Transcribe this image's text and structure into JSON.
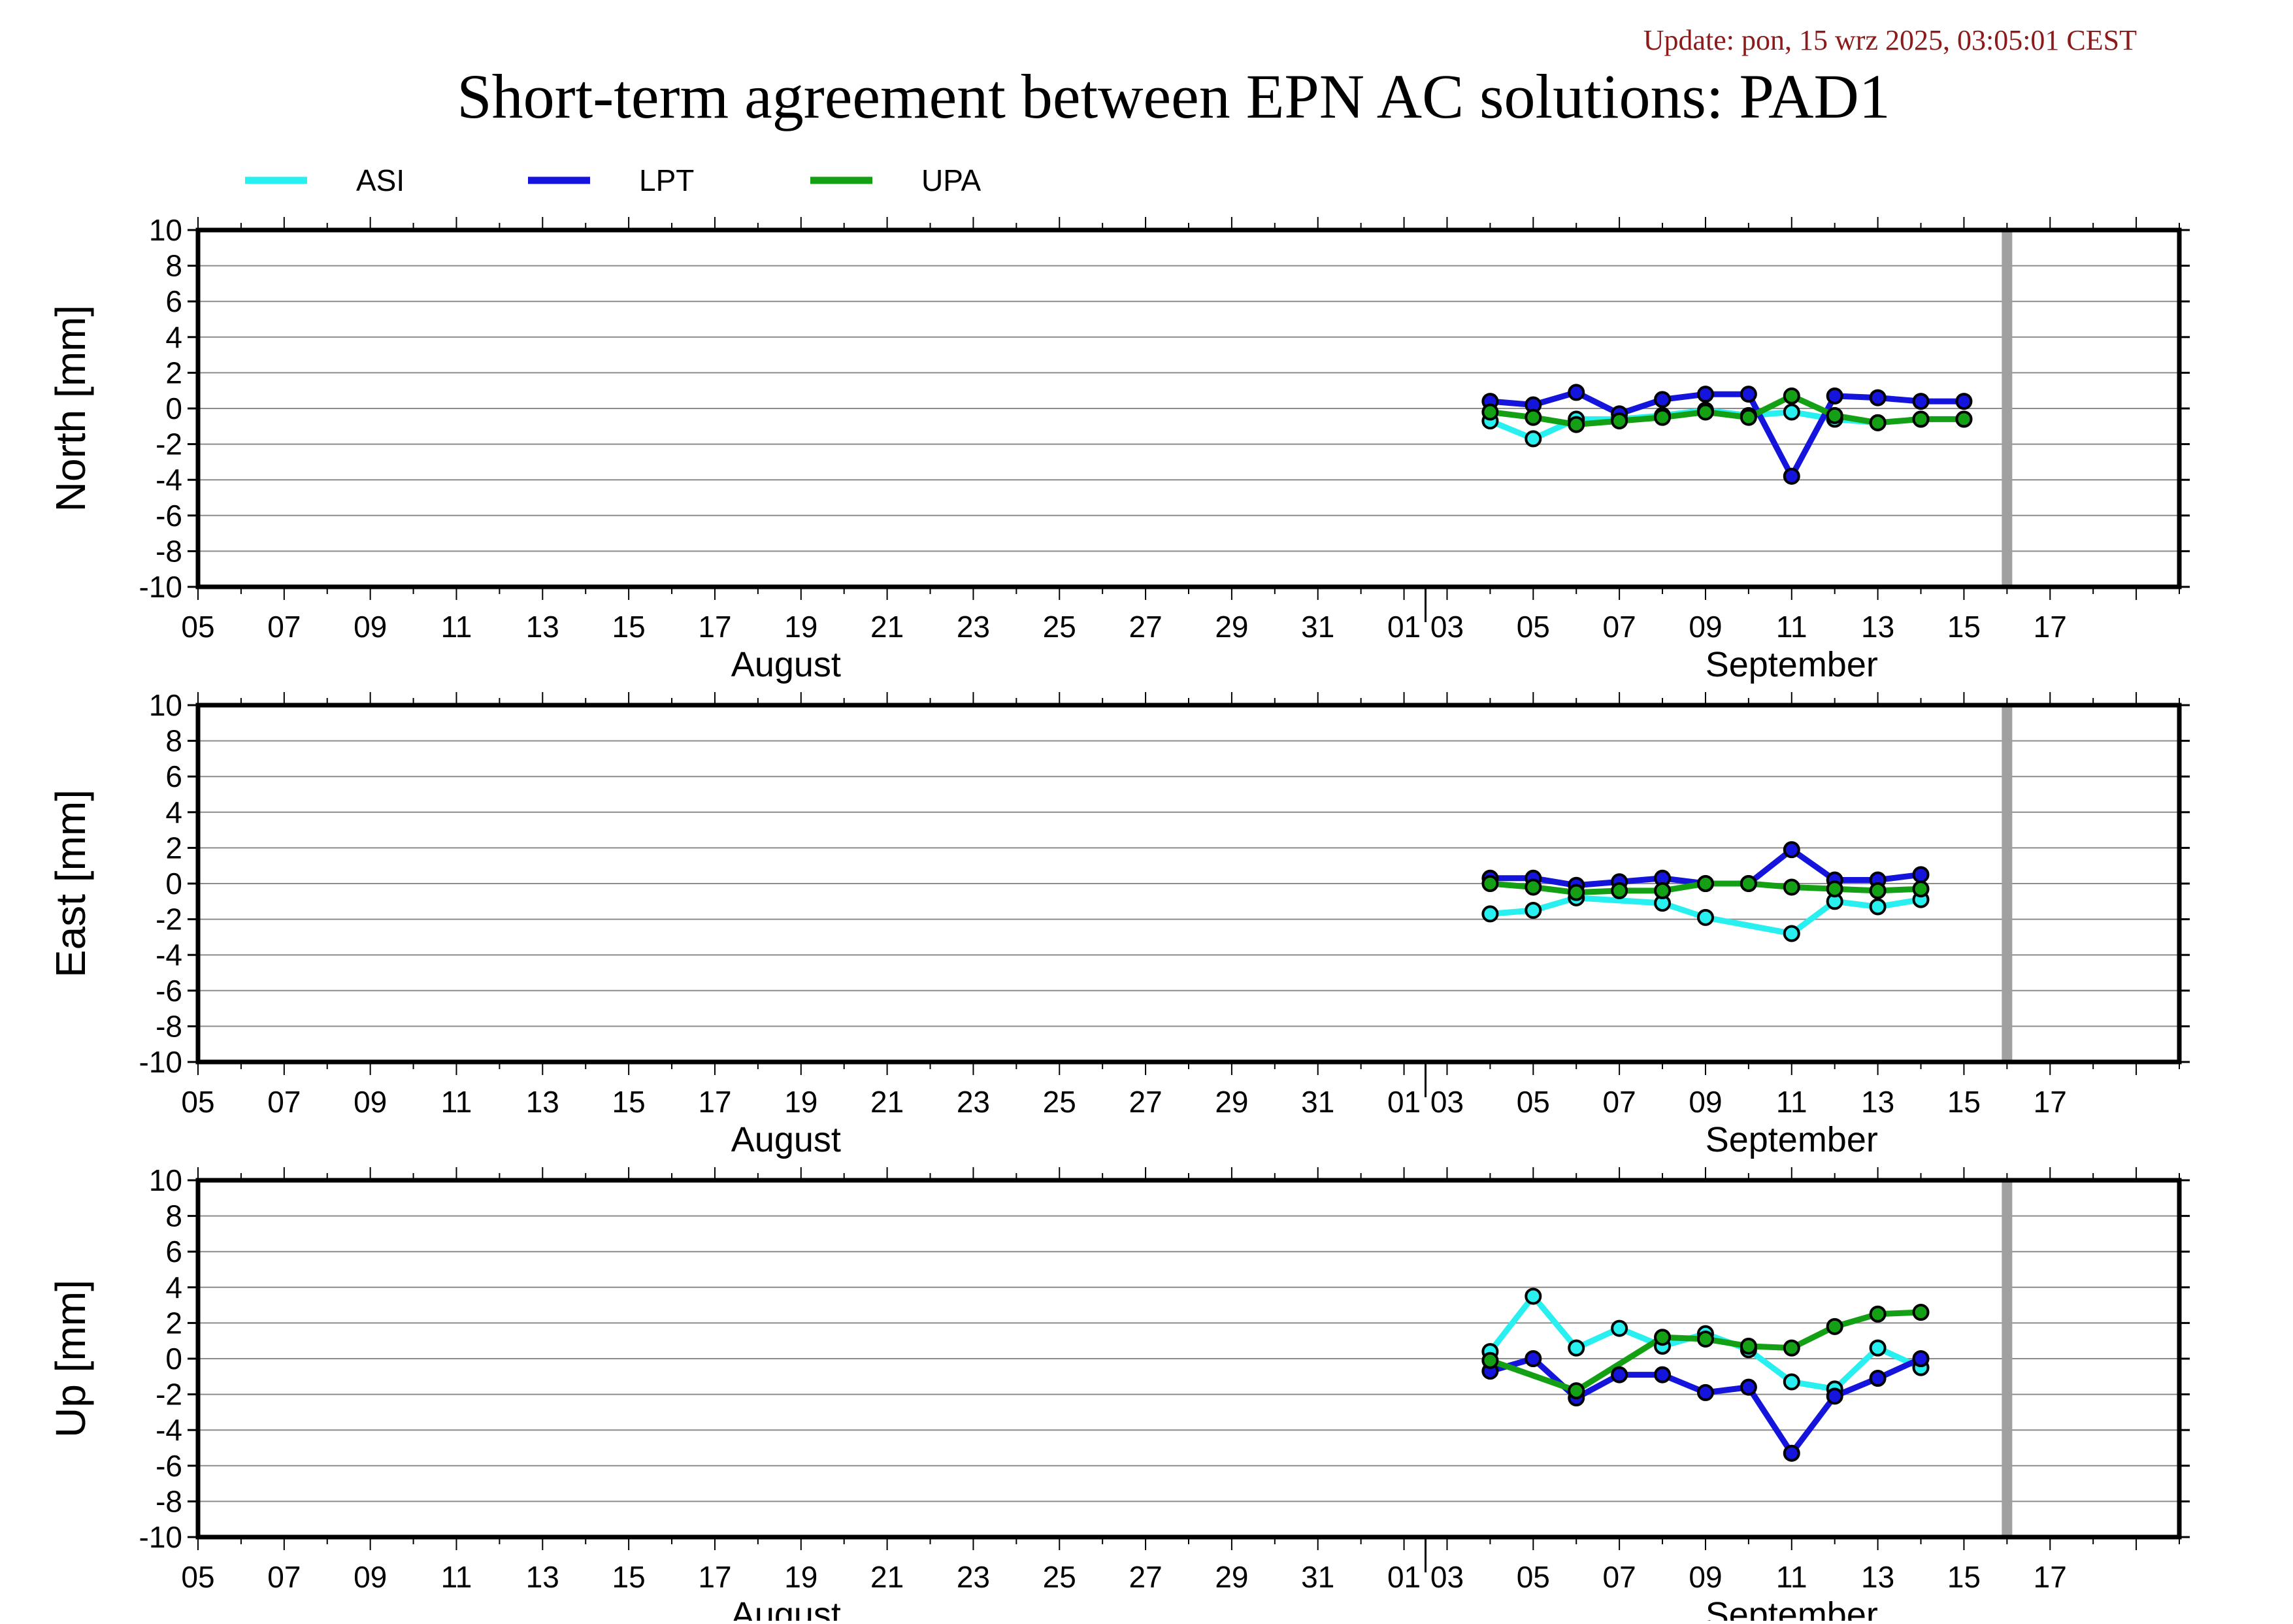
{
  "update": "Update: pon, 15 wrz 2025, 03:05:01 CEST",
  "title": "Short-term agreement between EPN AC solutions: PAD1",
  "legend": [
    {
      "name": "ASI",
      "color": "#29f0f0"
    },
    {
      "name": "LPT",
      "color": "#1414dc"
    },
    {
      "name": "UPA",
      "color": "#14a014"
    }
  ],
  "colors": {
    "frame": "#000000",
    "grid": "#8c8c8c",
    "marker_today": "#a0a0a0",
    "update": "#8b1a1a"
  },
  "x_ticks": [
    "05",
    "07",
    "09",
    "11",
    "13",
    "15",
    "17",
    "19",
    "21",
    "23",
    "25",
    "27",
    "29",
    "31",
    "01",
    "03",
    "05",
    "07",
    "09",
    "11",
    "13",
    "15",
    "17"
  ],
  "months": [
    "August",
    "September"
  ],
  "today_marker": "2025-09-14",
  "chart_data": [
    {
      "type": "line",
      "ylabel": "North [mm]",
      "ylim": [
        -10,
        10
      ],
      "yticks": [
        "10",
        "8",
        "6",
        "4",
        "2",
        "0",
        "-2",
        "-4",
        "-6",
        "-8",
        "-10"
      ],
      "xlim": [
        "2025-08-03",
        "2025-09-18"
      ],
      "series": [
        {
          "name": "ASI",
          "x": [
            "2025-09-02",
            "2025-09-03",
            "2025-09-04",
            "2025-09-05",
            "2025-09-06",
            "2025-09-07",
            "2025-09-08",
            "2025-09-09",
            "2025-09-10",
            "2025-09-11",
            "2025-09-12",
            "2025-09-13"
          ],
          "values": [
            -0.7,
            -1.7,
            -0.6,
            -0.6,
            -0.4,
            -0.1,
            -0.4,
            -0.2,
            -0.6,
            -0.8,
            -0.6,
            -0.6
          ]
        },
        {
          "name": "LPT",
          "x": [
            "2025-09-02",
            "2025-09-03",
            "2025-09-04",
            "2025-09-05",
            "2025-09-06",
            "2025-09-07",
            "2025-09-08",
            "2025-09-09",
            "2025-09-10",
            "2025-09-11",
            "2025-09-12",
            "2025-09-13"
          ],
          "values": [
            0.4,
            0.2,
            0.9,
            -0.3,
            0.5,
            0.8,
            0.8,
            -3.8,
            0.7,
            0.6,
            0.4,
            0.4
          ]
        },
        {
          "name": "UPA",
          "x": [
            "2025-09-02",
            "2025-09-03",
            "2025-09-04",
            "2025-09-05",
            "2025-09-06",
            "2025-09-07",
            "2025-09-08",
            "2025-09-09",
            "2025-09-10",
            "2025-09-11",
            "2025-09-12",
            "2025-09-13"
          ],
          "values": [
            -0.2,
            -0.5,
            -0.9,
            -0.7,
            -0.5,
            -0.2,
            -0.5,
            0.7,
            -0.4,
            -0.8,
            -0.6,
            -0.6
          ]
        }
      ]
    },
    {
      "type": "line",
      "ylabel": "East [mm]",
      "ylim": [
        -10,
        10
      ],
      "yticks": [
        "10",
        "8",
        "6",
        "4",
        "2",
        "0",
        "-2",
        "-4",
        "-6",
        "-8",
        "-10"
      ],
      "xlim": [
        "2025-08-03",
        "2025-09-18"
      ],
      "series": [
        {
          "name": "ASI",
          "x": [
            "2025-09-02",
            "2025-09-03",
            "2025-09-04",
            "2025-09-06",
            "2025-09-07",
            "2025-09-09",
            "2025-09-10",
            "2025-09-11",
            "2025-09-12"
          ],
          "values": [
            -1.7,
            -1.5,
            -0.8,
            -1.1,
            -1.9,
            -2.8,
            -1.0,
            -1.3,
            -0.9
          ]
        },
        {
          "name": "LPT",
          "x": [
            "2025-09-02",
            "2025-09-03",
            "2025-09-04",
            "2025-09-05",
            "2025-09-06",
            "2025-09-07",
            "2025-09-08",
            "2025-09-09",
            "2025-09-10",
            "2025-09-11",
            "2025-09-12"
          ],
          "values": [
            0.3,
            0.3,
            -0.1,
            0.1,
            0.3,
            0.0,
            0.0,
            1.9,
            0.2,
            0.2,
            0.5
          ]
        },
        {
          "name": "UPA",
          "x": [
            "2025-09-02",
            "2025-09-03",
            "2025-09-04",
            "2025-09-05",
            "2025-09-06",
            "2025-09-07",
            "2025-09-08",
            "2025-09-09",
            "2025-09-10",
            "2025-09-11",
            "2025-09-12"
          ],
          "values": [
            0.0,
            -0.2,
            -0.5,
            -0.4,
            -0.4,
            0.0,
            0.0,
            -0.2,
            -0.3,
            -0.4,
            -0.3
          ]
        }
      ]
    },
    {
      "type": "line",
      "ylabel": "Up [mm]",
      "ylim": [
        -10,
        10
      ],
      "yticks": [
        "10",
        "8",
        "6",
        "4",
        "2",
        "0",
        "-2",
        "-4",
        "-6",
        "-8",
        "-10"
      ],
      "xlim": [
        "2025-08-03",
        "2025-09-18"
      ],
      "series": [
        {
          "name": "ASI",
          "x": [
            "2025-09-02",
            "2025-09-03",
            "2025-09-04",
            "2025-09-05",
            "2025-09-06",
            "2025-09-07",
            "2025-09-08",
            "2025-09-09",
            "2025-09-10",
            "2025-09-11",
            "2025-09-12"
          ],
          "values": [
            0.4,
            3.5,
            0.6,
            1.7,
            0.7,
            1.4,
            0.5,
            -1.3,
            -1.7,
            0.6,
            -0.5
          ]
        },
        {
          "name": "LPT",
          "x": [
            "2025-09-02",
            "2025-09-03",
            "2025-09-04",
            "2025-09-05",
            "2025-09-06",
            "2025-09-07",
            "2025-09-08",
            "2025-09-09",
            "2025-09-10",
            "2025-09-11",
            "2025-09-12"
          ],
          "values": [
            -0.7,
            0.0,
            -2.2,
            -0.9,
            -0.9,
            -1.9,
            -1.6,
            -5.3,
            -2.1,
            -1.1,
            0.0
          ]
        },
        {
          "name": "UPA",
          "x": [
            "2025-09-02",
            "2025-09-04",
            "2025-09-06",
            "2025-09-07",
            "2025-09-08",
            "2025-09-09",
            "2025-09-10",
            "2025-09-11",
            "2025-09-12"
          ],
          "values": [
            -0.1,
            -1.8,
            1.2,
            1.1,
            0.7,
            0.6,
            1.8,
            2.5,
            2.6
          ]
        }
      ]
    }
  ]
}
